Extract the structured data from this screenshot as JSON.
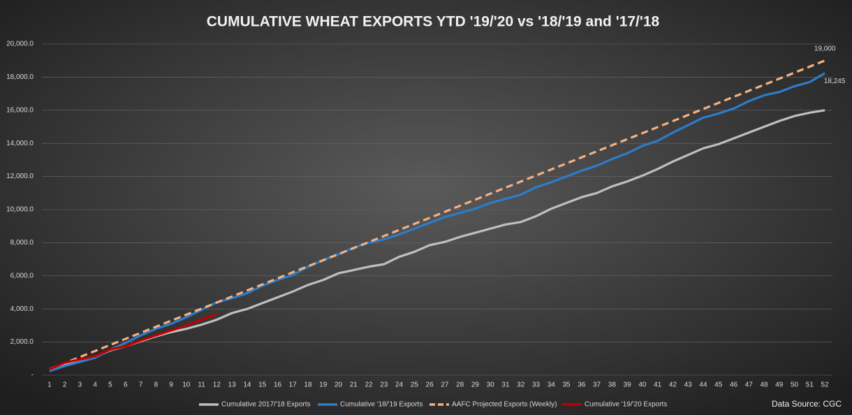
{
  "chart_data": {
    "type": "line",
    "title": "CUMULATIVE WHEAT EXPORTS YTD '19/'20 vs '18/'19 and '17/'18",
    "source": "Data Source: CGC",
    "categories": [
      "1",
      "2",
      "3",
      "4",
      "5",
      "6",
      "7",
      "8",
      "9",
      "10",
      "11",
      "12",
      "13",
      "14",
      "15",
      "16",
      "17",
      "18",
      "19",
      "20",
      "21",
      "22",
      "23",
      "24",
      "25",
      "26",
      "27",
      "28",
      "29",
      "30",
      "31",
      "32",
      "33",
      "34",
      "35",
      "36",
      "37",
      "38",
      "39",
      "40",
      "41",
      "42",
      "43",
      "44",
      "45",
      "46",
      "47",
      "48",
      "49",
      "50",
      "51",
      "52"
    ],
    "ylim": [
      0,
      20000
    ],
    "yticks": [
      {
        "value": 0,
        "label": "-"
      },
      {
        "value": 2000,
        "label": "2,000.0"
      },
      {
        "value": 4000,
        "label": "4,000.0"
      },
      {
        "value": 6000,
        "label": "6,000.0"
      },
      {
        "value": 8000,
        "label": "8,000.0"
      },
      {
        "value": 10000,
        "label": "10,000.0"
      },
      {
        "value": 12000,
        "label": "12,000.0"
      },
      {
        "value": 14000,
        "label": "14,000.0"
      },
      {
        "value": 16000,
        "label": "16,000.0"
      },
      {
        "value": 18000,
        "label": "18,000.0"
      },
      {
        "value": 20000,
        "label": "20,000.0"
      }
    ],
    "grid": true,
    "legend": "bottom",
    "series": [
      {
        "name": "Cumulative 2017/'18 Exports",
        "color": "#bfbfbf",
        "dashed": false,
        "values": [
          350,
          650,
          850,
          1100,
          1500,
          1750,
          2050,
          2350,
          2600,
          2800,
          3050,
          3350,
          3750,
          4000,
          4350,
          4700,
          5050,
          5450,
          5750,
          6150,
          6350,
          6550,
          6700,
          7150,
          7450,
          7850,
          8050,
          8350,
          8600,
          8850,
          9100,
          9250,
          9600,
          10050,
          10400,
          10750,
          11000,
          11400,
          11700,
          12050,
          12450,
          12900,
          13300,
          13700,
          13950,
          14300,
          14650,
          15000,
          15350,
          15650,
          15850,
          16000
        ]
      },
      {
        "name": "Cumulative '18/'19 Exports",
        "color": "#2e7cc8",
        "dashed": false,
        "end_label": "18,245",
        "values": [
          250,
          550,
          800,
          1050,
          1550,
          1950,
          2400,
          2800,
          3100,
          3500,
          3950,
          4400,
          4650,
          4950,
          5400,
          5750,
          6050,
          6550,
          6950,
          7300,
          7700,
          8000,
          8200,
          8500,
          8850,
          9200,
          9550,
          9800,
          10050,
          10400,
          10650,
          10900,
          11350,
          11650,
          12000,
          12350,
          12650,
          13050,
          13400,
          13850,
          14150,
          14650,
          15100,
          15550,
          15800,
          16100,
          16550,
          16900,
          17100,
          17450,
          17700,
          18245
        ]
      },
      {
        "name": "AAFC Projected Exports (Weekly)",
        "color": "#f4b183",
        "dashed": true,
        "end_label": "19,000",
        "values": [
          365,
          731,
          1096,
          1462,
          1827,
          2192,
          2558,
          2923,
          3288,
          3654,
          4019,
          4385,
          4750,
          5115,
          5481,
          5846,
          6212,
          6577,
          6942,
          7308,
          7673,
          8038,
          8404,
          8769,
          9135,
          9500,
          9865,
          10231,
          10596,
          10962,
          11327,
          11692,
          12058,
          12423,
          12788,
          13154,
          13519,
          13885,
          14250,
          14615,
          14981,
          15346,
          15712,
          16077,
          16442,
          16808,
          17173,
          17538,
          17904,
          18269,
          18635,
          19000
        ]
      },
      {
        "name": "Cumulative '19/'20 Exports",
        "color": "#c00000",
        "dashed": false,
        "values": [
          350,
          750,
          950,
          1150,
          1550,
          1750,
          2100,
          2400,
          2700,
          3000,
          3350,
          3700,
          null,
          null,
          null,
          null,
          null,
          null,
          null,
          null,
          null,
          null,
          null,
          null,
          null,
          null,
          null,
          null,
          null,
          null,
          null,
          null,
          null,
          null,
          null,
          null,
          null,
          null,
          null,
          null,
          null,
          null,
          null,
          null,
          null,
          null,
          null,
          null,
          null,
          null,
          null,
          null
        ]
      }
    ]
  }
}
